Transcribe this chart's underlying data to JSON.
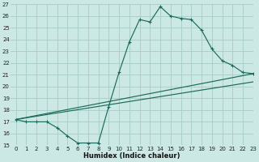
{
  "bg_color": "#cce8e4",
  "grid_color": "#aacfcb",
  "line_color": "#1a6b5a",
  "line1_x": [
    0,
    1,
    2,
    3,
    4,
    5,
    6,
    7,
    8,
    9,
    10,
    11,
    12,
    13,
    14,
    15,
    16,
    17,
    18,
    19,
    20,
    21,
    22,
    23
  ],
  "line1_y": [
    17.2,
    17.0,
    17.0,
    17.0,
    16.5,
    15.8,
    15.2,
    15.2,
    15.2,
    18.3,
    21.2,
    23.8,
    25.7,
    25.5,
    26.8,
    26.0,
    25.8,
    25.7,
    24.8,
    23.2,
    22.2,
    21.8,
    21.2,
    21.1
  ],
  "line2_x": [
    0,
    23
  ],
  "line2_y": [
    17.2,
    21.1
  ],
  "line3_x": [
    0,
    23
  ],
  "line3_y": [
    17.2,
    20.4
  ],
  "xlim": [
    -0.5,
    23
  ],
  "ylim": [
    15,
    27
  ],
  "yticks": [
    15,
    16,
    17,
    18,
    19,
    20,
    21,
    22,
    23,
    24,
    25,
    26,
    27
  ],
  "xticks": [
    0,
    1,
    2,
    3,
    4,
    5,
    6,
    7,
    8,
    9,
    10,
    11,
    12,
    13,
    14,
    15,
    16,
    17,
    18,
    19,
    20,
    21,
    22,
    23
  ],
  "xlabel": "Humidex (Indice chaleur)",
  "tick_fontsize": 5.0,
  "xlabel_fontsize": 6.0
}
